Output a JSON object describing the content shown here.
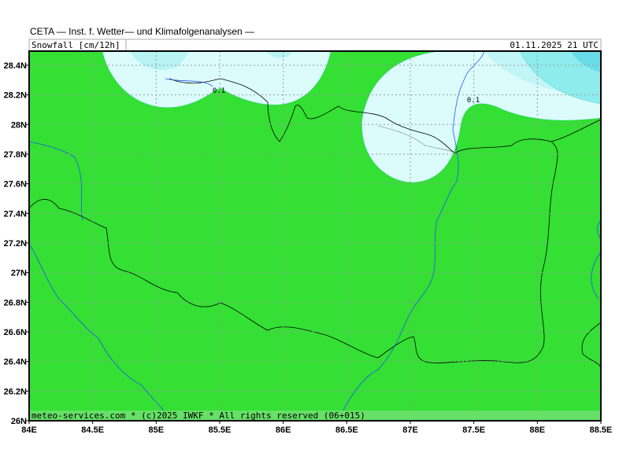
{
  "header": {
    "title": "CETA — Inst. f. Wetter— und Klimafolgenanalysen —",
    "parameter": "Snowfall [cm/12h]",
    "valid_time": "01.11.2025 21 UTC"
  },
  "map": {
    "lon_labels": [
      "84E",
      "84.5E",
      "85E",
      "85.5E",
      "86E",
      "86.5E",
      "87E",
      "87.5E",
      "88E",
      "88.5E"
    ],
    "lat_labels": [
      "26N",
      "26.2N",
      "26.4N",
      "26.6N",
      "26.8N",
      "27N",
      "27.2N",
      "27.4N",
      "27.6N",
      "27.8N",
      "28N",
      "28.2N",
      "28.4N"
    ],
    "contour_labels": [
      "0.1",
      "0.1"
    ],
    "footer": "meteo-services.com * (c)2025 IWKF * All rights reserved (06+015)"
  }
}
